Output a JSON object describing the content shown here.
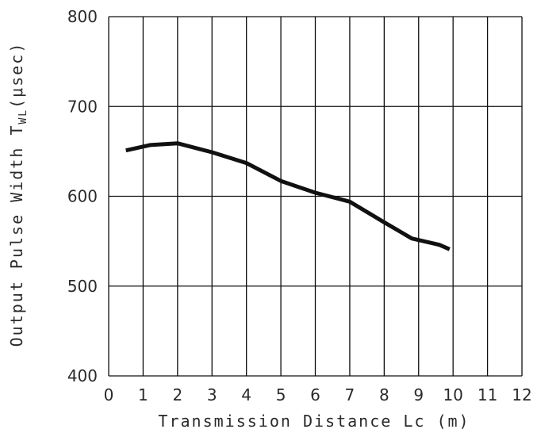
{
  "chart_data": {
    "type": "line",
    "xlabel": "Transmission Distance Lc (m)",
    "ylabel": "Output Pulse Width T",
    "ylabel_sub": "WL",
    "ylabel_unit": "(μsec)",
    "xlim": [
      0,
      12
    ],
    "ylim": [
      400,
      800
    ],
    "x_ticks": [
      0,
      1,
      2,
      3,
      4,
      5,
      6,
      7,
      8,
      9,
      10,
      11,
      12
    ],
    "y_ticks": [
      400,
      500,
      600,
      700,
      800
    ],
    "grid": true,
    "series": [
      {
        "x": [
          0.5,
          1.2,
          2.0,
          3.0,
          4.0,
          5.0,
          6.0,
          7.0,
          8.0,
          8.8,
          9.6,
          9.9
        ],
        "y": [
          651,
          657,
          659,
          649,
          637,
          617,
          604,
          594,
          571,
          553,
          546,
          541
        ]
      }
    ],
    "colors": {
      "line": "#111111",
      "grid": "#111111",
      "text": "#2a2a2a"
    }
  }
}
